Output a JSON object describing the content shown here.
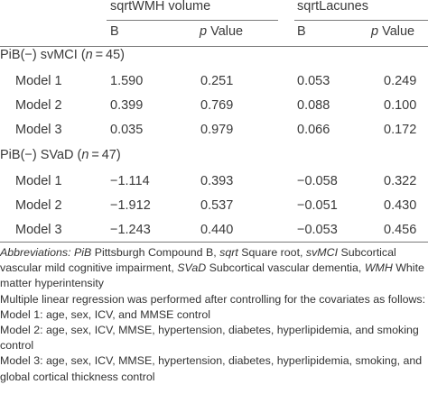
{
  "header": {
    "group1": "sqrtWMH volume",
    "group2": "sqrtLacunes",
    "col_b": "B",
    "col_p_italic": "p",
    "col_p_rest": " Value"
  },
  "sections": [
    {
      "label_prefix": "PiB(−) svMCI (",
      "label_n": "n",
      "label_suffix": " = 45)",
      "rows": [
        {
          "model": "Model 1",
          "b1": "1.590",
          "p1": "0.251",
          "b2": "0.053",
          "p2": "0.249"
        },
        {
          "model": "Model 2",
          "b1": "0.399",
          "p1": "0.769",
          "b2": "0.088",
          "p2": "0.100"
        },
        {
          "model": "Model 3",
          "b1": "0.035",
          "p1": "0.979",
          "b2": "0.066",
          "p2": "0.172"
        }
      ]
    },
    {
      "label_prefix": "PiB(−) SVaD (",
      "label_n": "n",
      "label_suffix": " = 47)",
      "rows": [
        {
          "model": "Model 1",
          "b1": "−1.114",
          "p1": "0.393",
          "b2": "−0.058",
          "p2": "0.322"
        },
        {
          "model": "Model 2",
          "b1": "−1.912",
          "p1": "0.537",
          "b2": "−0.051",
          "p2": "0.430"
        },
        {
          "model": "Model 3",
          "b1": "−1.243",
          "p1": "0.440",
          "b2": "−0.053",
          "p2": "0.456"
        }
      ]
    }
  ],
  "notes": {
    "abbr_heading": "Abbreviations:",
    "abbr": [
      {
        "term": "PiB",
        "def": " Pittsburgh Compound B, "
      },
      {
        "term": "sqrt",
        "def": " Square root, "
      },
      {
        "term": "svMCI",
        "def": " Subcortical vascular mild cognitive impairment, "
      },
      {
        "term": "SVaD",
        "def": " Subcortical vascular dementia, "
      },
      {
        "term": "WMH",
        "def": " White matter hyperintensity"
      }
    ],
    "regression": "Multiple linear regression was performed after controlling for the covariates as follows:",
    "models": [
      "Model 1: age, sex, ICV, and MMSE control",
      "Model 2: age, sex, ICV, MMSE, hypertension, diabetes, hyperlipidemia, and smoking control",
      "Model 3: age, sex, ICV, MMSE, hypertension, diabetes, hyperlipidemia, smoking, and global cortical thickness control"
    ]
  }
}
